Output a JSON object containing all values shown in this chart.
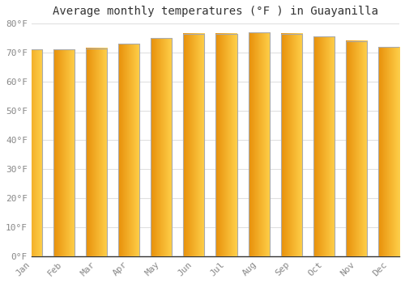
{
  "title": "Average monthly temperatures (°F ) in Guayanilla",
  "months": [
    "Jan",
    "Feb",
    "Mar",
    "Apr",
    "May",
    "Jun",
    "Jul",
    "Aug",
    "Sep",
    "Oct",
    "Nov",
    "Dec"
  ],
  "values": [
    71,
    71,
    71.5,
    73,
    75,
    76.5,
    76.5,
    77,
    76.5,
    75.5,
    74,
    72
  ],
  "bar_color_dark": "#E8900A",
  "bar_color_light": "#FFD04A",
  "bar_edge_color": "#AAAAAA",
  "ylim": [
    0,
    80
  ],
  "yticks": [
    0,
    10,
    20,
    30,
    40,
    50,
    60,
    70,
    80
  ],
  "ytick_labels": [
    "0°F",
    "10°F",
    "20°F",
    "30°F",
    "40°F",
    "50°F",
    "60°F",
    "70°F",
    "80°F"
  ],
  "background_color": "#FFFFFF",
  "grid_color": "#E0E0E0",
  "title_fontsize": 10,
  "tick_fontsize": 8,
  "font_family": "monospace"
}
